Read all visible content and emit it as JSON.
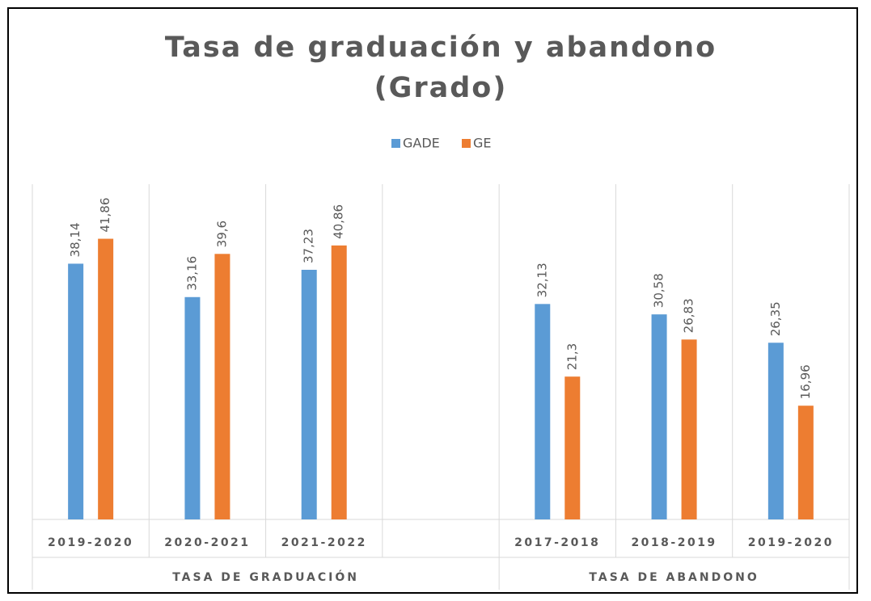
{
  "chart_data": {
    "type": "bar",
    "title": [
      "Tasa de graduación y abandono",
      "(Grado)"
    ],
    "categories": [
      "2019-2020",
      "2020-2021",
      "2021-2022",
      null,
      "2017-2018",
      "2018-2019",
      "2019-2020"
    ],
    "group_labels": [
      "TASA DE GRADUACIÓN",
      "TASA DE ABANDONO"
    ],
    "series": [
      {
        "name": "GADE",
        "color": "#5b9bd5",
        "values": [
          38.14,
          33.16,
          37.23,
          null,
          32.13,
          30.58,
          26.35
        ],
        "value_labels": [
          "38,14",
          "33,16",
          "37,23",
          null,
          "32,13",
          "30,58",
          "26,35"
        ]
      },
      {
        "name": "GE",
        "color": "#ed7d31",
        "values": [
          41.86,
          39.6,
          40.86,
          null,
          21.3,
          26.83,
          16.96
        ],
        "value_labels": [
          "41,86",
          "39,6",
          "40,86",
          null,
          "21,3",
          "26,83",
          "16,96"
        ]
      }
    ],
    "ylim": [
      0,
      50
    ],
    "legend": "top"
  }
}
